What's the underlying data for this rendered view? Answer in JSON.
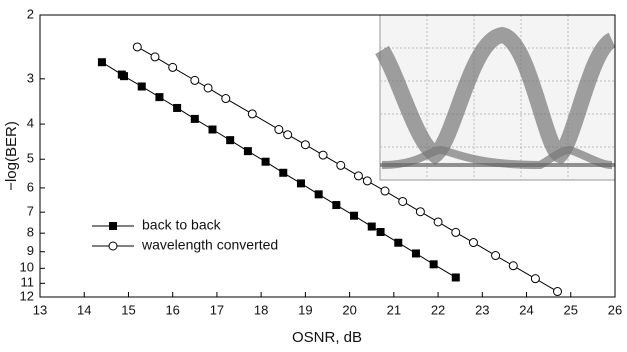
{
  "chart_data": {
    "type": "line",
    "x_label": "OSNR, dB",
    "y_label": "−log(BER)",
    "xlim": [
      13,
      26
    ],
    "xticks": [
      13,
      14,
      15,
      16,
      17,
      18,
      19,
      20,
      21,
      22,
      23,
      24,
      25,
      26
    ],
    "ylim": [
      2,
      12
    ],
    "yticks": [
      2,
      3,
      4,
      5,
      6,
      7,
      8,
      9,
      10,
      11,
      12
    ],
    "y_log": true,
    "y_inverted": true,
    "legend": "lower left",
    "series": [
      {
        "name": "back to back",
        "color": "#000000",
        "marker": "square",
        "x": [
          14.4,
          14.85,
          14.9,
          15.3,
          15.7,
          16.1,
          16.5,
          16.9,
          17.3,
          17.7,
          18.1,
          18.5,
          18.9,
          19.3,
          19.7,
          20.1,
          20.5,
          20.7,
          21.1,
          21.5,
          21.9,
          22.4
        ],
        "values": [
          2.7,
          2.92,
          2.95,
          3.15,
          3.37,
          3.61,
          3.87,
          4.14,
          4.43,
          4.75,
          5.08,
          5.45,
          5.83,
          6.25,
          6.69,
          7.16,
          7.67,
          7.94,
          8.5,
          9.1,
          9.75,
          10.6
        ]
      },
      {
        "name": "wavelength converted",
        "color": "#000000",
        "marker": "circle",
        "x": [
          15.2,
          15.6,
          16.0,
          16.5,
          16.8,
          17.2,
          17.8,
          18.4,
          18.6,
          19.0,
          19.4,
          19.8,
          20.2,
          20.4,
          20.8,
          21.2,
          21.6,
          22.0,
          22.4,
          22.8,
          23.3,
          23.7,
          24.2,
          24.7
        ],
        "values": [
          2.45,
          2.61,
          2.79,
          3.03,
          3.18,
          3.4,
          3.75,
          4.14,
          4.28,
          4.56,
          4.87,
          5.2,
          5.56,
          5.74,
          6.12,
          6.54,
          6.98,
          7.45,
          7.96,
          8.49,
          9.22,
          9.84,
          10.68,
          11.59
        ]
      }
    ]
  }
}
